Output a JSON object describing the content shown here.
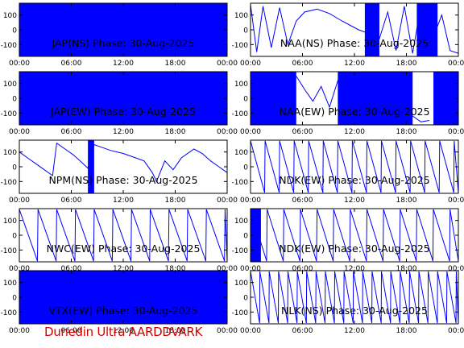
{
  "footer": "Dunedin Ultra AARDDVARK",
  "line_color": "#0000ff",
  "footer_color": "#d40000",
  "chart_data": [
    {
      "type": "line",
      "title": "JAP(NS) Phase: 30-Aug-2025",
      "x": [
        "00:00",
        "06:00",
        "12:00",
        "18:00",
        "00:00"
      ],
      "yticks": [
        100,
        0,
        -100
      ],
      "ylim": [
        -180,
        180
      ],
      "style": "dense",
      "segments": [
        [
          0.0,
          1.0
        ]
      ],
      "trace": []
    },
    {
      "type": "line",
      "title": "NAA(NS) Phase: 30-Aug-2025",
      "x": [
        "00:00",
        "06:00",
        "12:00",
        "18:00",
        "00:00"
      ],
      "yticks": [
        100,
        0,
        -100
      ],
      "ylim": [
        -180,
        180
      ],
      "style": "mixed",
      "segments": [
        [
          0.55,
          0.62
        ],
        [
          0.8,
          0.9
        ]
      ],
      "trace": [
        [
          0.0,
          170
        ],
        [
          0.03,
          -150
        ],
        [
          0.06,
          160
        ],
        [
          0.1,
          -120
        ],
        [
          0.14,
          150
        ],
        [
          0.18,
          -100
        ],
        [
          0.22,
          60
        ],
        [
          0.26,
          120
        ],
        [
          0.32,
          140
        ],
        [
          0.38,
          110
        ],
        [
          0.44,
          60
        ],
        [
          0.48,
          30
        ],
        [
          0.52,
          0
        ],
        [
          0.56,
          -20
        ],
        [
          0.58,
          40
        ],
        [
          0.62,
          -60
        ],
        [
          0.66,
          120
        ],
        [
          0.7,
          -140
        ],
        [
          0.74,
          160
        ],
        [
          0.78,
          -160
        ],
        [
          0.82,
          170
        ],
        [
          0.86,
          -120
        ],
        [
          0.92,
          100
        ],
        [
          0.96,
          -140
        ],
        [
          1.0,
          -160
        ]
      ]
    },
    {
      "type": "line",
      "title": "JAP(EW) Phase: 30-Aug-2025",
      "x": [
        "00:00",
        "06:00",
        "12:00",
        "18:00",
        "00:00"
      ],
      "yticks": [
        100,
        0,
        -100
      ],
      "ylim": [
        -180,
        180
      ],
      "style": "dense",
      "segments": [
        [
          0.0,
          1.0
        ]
      ],
      "trace": []
    },
    {
      "type": "line",
      "title": "NAA(EW) Phase: 30-Aug-2025",
      "x": [
        "00:00",
        "06:00",
        "12:00",
        "18:00",
        "00:00"
      ],
      "yticks": [
        100,
        0,
        -100
      ],
      "ylim": [
        -180,
        180
      ],
      "style": "mixed",
      "segments": [
        [
          0.0,
          0.22
        ],
        [
          0.42,
          0.78
        ],
        [
          0.88,
          1.0
        ]
      ],
      "trace": [
        [
          0.22,
          150
        ],
        [
          0.26,
          60
        ],
        [
          0.3,
          -20
        ],
        [
          0.34,
          80
        ],
        [
          0.38,
          -60
        ],
        [
          0.42,
          120
        ],
        [
          0.78,
          -120
        ],
        [
          0.82,
          -160
        ],
        [
          0.86,
          -150
        ]
      ]
    },
    {
      "type": "line",
      "title": "NPM(NS) Phase: 30-Aug-2025",
      "x": [
        "00:00",
        "06:00",
        "12:00",
        "18:00",
        "00:00"
      ],
      "yticks": [
        100,
        0,
        -100
      ],
      "ylim": [
        -180,
        180
      ],
      "style": "trace",
      "segments": [
        [
          0.33,
          0.36
        ]
      ],
      "trace": [
        [
          0.0,
          100
        ],
        [
          0.04,
          60
        ],
        [
          0.08,
          20
        ],
        [
          0.12,
          -20
        ],
        [
          0.16,
          -60
        ],
        [
          0.18,
          160
        ],
        [
          0.22,
          120
        ],
        [
          0.26,
          80
        ],
        [
          0.3,
          30
        ],
        [
          0.33,
          -10
        ],
        [
          0.36,
          150
        ],
        [
          0.4,
          130
        ],
        [
          0.44,
          110
        ],
        [
          0.5,
          90
        ],
        [
          0.56,
          60
        ],
        [
          0.6,
          40
        ],
        [
          0.64,
          -40
        ],
        [
          0.66,
          -100
        ],
        [
          0.7,
          40
        ],
        [
          0.74,
          -20
        ],
        [
          0.78,
          60
        ],
        [
          0.84,
          120
        ],
        [
          0.88,
          90
        ],
        [
          0.92,
          40
        ],
        [
          0.96,
          0
        ],
        [
          1.0,
          -40
        ]
      ]
    },
    {
      "type": "line",
      "title": "NDK(EW) Phase: 30-Aug-2025",
      "x": [
        "00:00",
        "06:00",
        "12:00",
        "18:00",
        "00:00"
      ],
      "yticks": [
        100,
        0,
        -100
      ],
      "ylim": [
        -180,
        180
      ],
      "style": "sawtooth",
      "period": 0.07,
      "segments": [],
      "trace": []
    },
    {
      "type": "line",
      "title": "NWC(EW) Phase: 30-Aug-2025",
      "x": [
        "00:00",
        "06:00",
        "12:00",
        "18:00",
        "00:00"
      ],
      "yticks": [
        100,
        0,
        -100
      ],
      "ylim": [
        -180,
        180
      ],
      "style": "sawtooth",
      "period": 0.09,
      "segments": [],
      "trace": []
    },
    {
      "type": "line",
      "title": "NDK(EW) Phase: 30-Aug-2025",
      "x": [
        "00:00",
        "06:00",
        "12:00",
        "18:00",
        "00:00"
      ],
      "yticks": [
        100,
        0,
        -100
      ],
      "ylim": [
        -180,
        180
      ],
      "style": "sawtooth",
      "period": 0.08,
      "segments": [
        [
          0.0,
          0.05
        ]
      ],
      "trace": []
    },
    {
      "type": "line",
      "title": "VTX(EW) Phase: 30-Aug-2025",
      "x": [
        "00:00",
        "06:00",
        "12:00",
        "18:00",
        "00:00"
      ],
      "yticks": [
        100,
        0,
        -100
      ],
      "ylim": [
        -180,
        180
      ],
      "style": "dense",
      "segments": [
        [
          0.0,
          1.0
        ]
      ],
      "trace": []
    },
    {
      "type": "line",
      "title": "NLK(NS) Phase: 30-Aug-2025",
      "x": [
        "00:00",
        "06:00",
        "12:00",
        "18:00",
        "00:00"
      ],
      "yticks": [
        100,
        0,
        -100
      ],
      "ylim": [
        -180,
        180
      ],
      "style": "sawtooth",
      "period": 0.045,
      "segments": [],
      "trace": []
    }
  ]
}
